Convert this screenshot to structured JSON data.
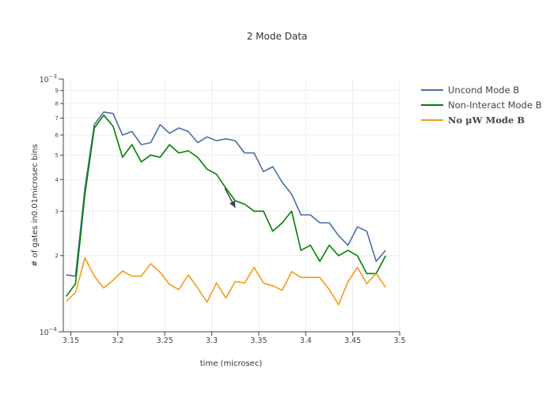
{
  "chart_data": {
    "type": "line",
    "title": "2 Mode Data",
    "xlabel": "time (microsec)",
    "ylabel": "# of gates in0.01microsec bins",
    "xlim": [
      3.142,
      3.5
    ],
    "ylim": [
      0.0001,
      0.001
    ],
    "yscale": "log",
    "grid": true,
    "legend_position": "right",
    "x_ticks": [
      "3.15",
      "3.2",
      "3.25",
      "3.3",
      "3.35",
      "3.4",
      "3.45",
      "3.5"
    ],
    "y_major_ticks": [
      {
        "value": 0.0001,
        "mantissa": "10",
        "exponent": "−4"
      },
      {
        "value": 0.001,
        "mantissa": "10",
        "exponent": "−3"
      }
    ],
    "y_minor_ticks": [
      {
        "value": 0.0002,
        "label": "2"
      },
      {
        "value": 0.0003,
        "label": "3"
      },
      {
        "value": 0.0004,
        "label": "4"
      },
      {
        "value": 0.0005,
        "label": "5"
      },
      {
        "value": 0.0006,
        "label": "6"
      },
      {
        "value": 0.0007,
        "label": "7"
      },
      {
        "value": 0.0008,
        "label": "8"
      },
      {
        "value": 0.0009,
        "label": "9"
      }
    ],
    "x": [
      3.145,
      3.155,
      3.165,
      3.175,
      3.185,
      3.195,
      3.205,
      3.215,
      3.225,
      3.235,
      3.245,
      3.255,
      3.265,
      3.275,
      3.285,
      3.295,
      3.305,
      3.315,
      3.325,
      3.335,
      3.345,
      3.355,
      3.365,
      3.375,
      3.385,
      3.395,
      3.405,
      3.415,
      3.425,
      3.435,
      3.445,
      3.455,
      3.465,
      3.475,
      3.485
    ],
    "series": [
      {
        "name": "Uncond Mode B",
        "color": "#4a6fa5",
        "values": [
          0.000168,
          0.000166,
          0.00037,
          0.00066,
          0.00074,
          0.00073,
          0.0006,
          0.00062,
          0.00055,
          0.00056,
          0.00066,
          0.00061,
          0.00064,
          0.00062,
          0.00056,
          0.00059,
          0.00057,
          0.00058,
          0.00057,
          0.00051,
          0.00051,
          0.00043,
          0.00045,
          0.00039,
          0.00035,
          0.00029,
          0.00029,
          0.00027,
          0.00027,
          0.00024,
          0.00022,
          0.00026,
          0.00025,
          0.00019,
          0.00021
        ]
      },
      {
        "name": "Non-Interact Mode B",
        "color": "#008000",
        "values": [
          0.000138,
          0.000155,
          0.00035,
          0.00064,
          0.00072,
          0.00065,
          0.00049,
          0.00055,
          0.00047,
          0.0005,
          0.00049,
          0.00055,
          0.00051,
          0.00052,
          0.00049,
          0.00044,
          0.00042,
          0.00037,
          0.00033,
          0.00032,
          0.0003,
          0.0003,
          0.00025,
          0.00027,
          0.0003,
          0.00021,
          0.00022,
          0.00019,
          0.00022,
          0.0002,
          0.00021,
          0.0002,
          0.00017,
          0.00017,
          0.0002
        ]
      },
      {
        "name": "No μW Mode B",
        "color": "#f59b1a",
        "values": [
          0.000132,
          0.000143,
          0.000196,
          0.000166,
          0.000149,
          0.00016,
          0.000174,
          0.000166,
          0.000166,
          0.000186,
          0.000172,
          0.000154,
          0.000147,
          0.000168,
          0.000149,
          0.000131,
          0.000156,
          0.000136,
          0.000158,
          0.000156,
          0.00018,
          0.000156,
          0.000152,
          0.000146,
          0.000173,
          0.000164,
          0.000164,
          0.000164,
          0.000147,
          0.000128,
          0.000158,
          0.00018,
          0.000155,
          0.00017,
          0.00015
        ]
      }
    ],
    "annotation": {
      "x": 3.325,
      "y": 0.00031,
      "ax": 3.314,
      "ay": 0.00037,
      "text": ""
    }
  }
}
